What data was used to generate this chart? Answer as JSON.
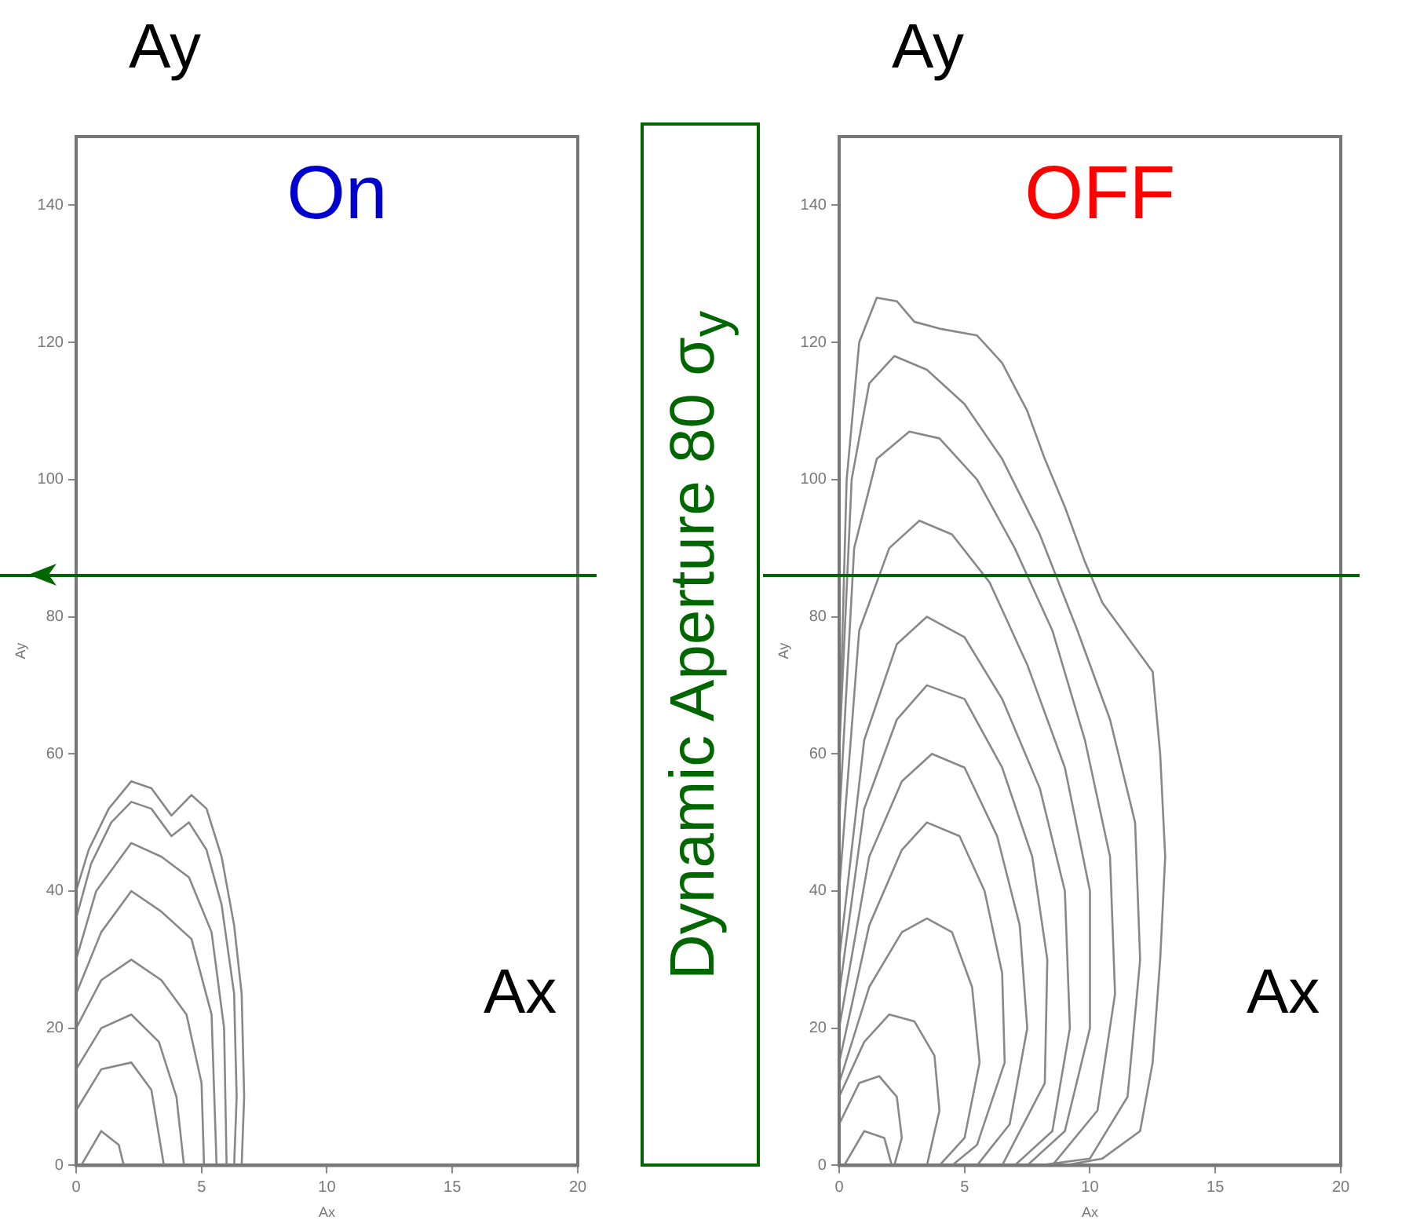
{
  "chart_data": [
    {
      "type": "line",
      "title": "On",
      "xlabel": "Ax",
      "ylabel": "Ay",
      "xlim": [
        0,
        20
      ],
      "xticks": [
        0,
        5,
        10,
        15,
        20
      ],
      "ylim": [
        0,
        150
      ],
      "yticks": [
        0,
        20,
        40,
        60,
        80,
        100,
        120,
        140
      ],
      "grid": false,
      "legend": false,
      "marker": "none",
      "line_style": "solid",
      "annotations": [
        "Ay",
        "Ax",
        "Dynamic Aperture 80 σ$_{y}$"
      ],
      "ref_lines": [
        {
          "axis": "y",
          "value": 86,
          "color": "#006600"
        }
      ],
      "series": [
        {
          "color": "#888888",
          "x": [
            0,
            0.5,
            1.3,
            2.2,
            3,
            3.8,
            4.6,
            5.2,
            5.8,
            6.3,
            6.6,
            6.7,
            6.6
          ],
          "values": [
            40,
            46,
            52,
            56,
            55,
            51,
            54,
            52,
            45,
            35,
            25,
            10,
            0
          ]
        },
        {
          "color": "#888888",
          "x": [
            0,
            0.6,
            1.4,
            2.2,
            3,
            3.8,
            4.5,
            5.2,
            5.8,
            6.3,
            6.4,
            6.3
          ],
          "values": [
            36,
            44,
            50,
            53,
            52,
            48,
            50,
            46,
            38,
            25,
            10,
            0
          ]
        },
        {
          "color": "#888888",
          "x": [
            0,
            0.8,
            2.2,
            3.4,
            4.5,
            5.4,
            5.9,
            6
          ],
          "values": [
            30,
            40,
            47,
            45,
            42,
            34,
            20,
            0
          ]
        },
        {
          "color": "#888888",
          "x": [
            0,
            1,
            2.2,
            3.4,
            4.6,
            5.4,
            5.6
          ],
          "values": [
            25,
            34,
            40,
            37,
            33,
            22,
            0
          ]
        },
        {
          "color": "#888888",
          "x": [
            0,
            1,
            2.2,
            3.4,
            4.4,
            5,
            5.1
          ],
          "values": [
            20,
            27,
            30,
            27,
            22,
            12,
            0
          ]
        },
        {
          "color": "#888888",
          "x": [
            0,
            1,
            2.2,
            3.3,
            4,
            4.3
          ],
          "values": [
            14,
            20,
            22,
            18,
            10,
            0
          ]
        },
        {
          "color": "#888888",
          "x": [
            0,
            1,
            2.2,
            3,
            3.5
          ],
          "values": [
            8,
            14,
            15,
            11,
            0
          ]
        },
        {
          "color": "#888888",
          "x": [
            0.2,
            1,
            1.7,
            1.9
          ],
          "values": [
            0,
            5,
            3,
            0
          ]
        }
      ]
    },
    {
      "type": "line",
      "title": "OFF",
      "xlabel": "Ax",
      "ylabel": "Ay",
      "xlim": [
        0,
        20
      ],
      "xticks": [
        0,
        5,
        10,
        15,
        20
      ],
      "ylim": [
        0,
        150
      ],
      "yticks": [
        0,
        20,
        40,
        60,
        80,
        100,
        120,
        140
      ],
      "grid": false,
      "legend": false,
      "marker": "none",
      "line_style": "solid",
      "annotations": [
        "Ay",
        "Ax"
      ],
      "ref_lines": [
        {
          "axis": "y",
          "value": 86,
          "color": "#006600"
        }
      ],
      "series": [
        {
          "color": "#888888",
          "x": [
            0,
            0.3,
            0.8,
            1.5,
            2.3,
            3,
            4,
            5.5,
            6.5,
            7.5,
            8.2,
            9,
            9.8,
            10.5,
            11.5,
            12.5,
            12.8,
            13,
            12.8,
            12.5,
            12,
            10.5,
            9
          ],
          "values": [
            60,
            100,
            120,
            126.5,
            126,
            123,
            122,
            121,
            117,
            110,
            103,
            96,
            88,
            82,
            77,
            72,
            60,
            45,
            30,
            15,
            5,
            1,
            0
          ]
        },
        {
          "color": "#888888",
          "x": [
            0,
            0.5,
            1.2,
            2.2,
            3.5,
            5,
            6.5,
            8,
            9.5,
            10.8,
            11.8,
            12,
            11.5,
            10,
            8
          ],
          "values": [
            60,
            100,
            114,
            118,
            116,
            111,
            103,
            92,
            78,
            65,
            50,
            30,
            10,
            1,
            0
          ]
        },
        {
          "color": "#888888",
          "x": [
            0,
            0.6,
            1.5,
            2.8,
            4,
            5.5,
            7,
            8.5,
            9.8,
            10.8,
            11,
            10.3,
            8.5
          ],
          "values": [
            50,
            90,
            103,
            107,
            106,
            100,
            90,
            78,
            62,
            45,
            25,
            8,
            0
          ]
        },
        {
          "color": "#888888",
          "x": [
            0,
            0.8,
            2,
            3.2,
            4.5,
            6,
            7.5,
            9,
            10,
            10,
            9,
            7.5
          ],
          "values": [
            40,
            78,
            90,
            94,
            92,
            85,
            73,
            58,
            40,
            20,
            5,
            0
          ]
        },
        {
          "color": "#888888",
          "x": [
            0,
            1,
            2.3,
            3.5,
            5,
            6.5,
            8,
            9,
            9.2,
            8.5,
            7
          ],
          "values": [
            30,
            62,
            76,
            80,
            77,
            68,
            55,
            40,
            20,
            5,
            0
          ]
        },
        {
          "color": "#888888",
          "x": [
            0,
            1,
            2.3,
            3.5,
            5,
            6.5,
            7.7,
            8.3,
            8.2,
            6.5
          ],
          "values": [
            25,
            52,
            65,
            70,
            68,
            58,
            45,
            30,
            12,
            0
          ]
        },
        {
          "color": "#888888",
          "x": [
            0,
            1.2,
            2.5,
            3.7,
            5,
            6.3,
            7.2,
            7.5,
            6.8,
            5.5
          ],
          "values": [
            20,
            45,
            56,
            60,
            58,
            48,
            35,
            20,
            6,
            0
          ]
        },
        {
          "color": "#888888",
          "x": [
            0,
            1.2,
            2.5,
            3.5,
            4.8,
            5.8,
            6.5,
            6.6,
            5.5,
            4.5
          ],
          "values": [
            15,
            35,
            46,
            50,
            48,
            40,
            28,
            15,
            3,
            0
          ]
        },
        {
          "color": "#888888",
          "x": [
            0,
            1.2,
            2.5,
            3.5,
            4.5,
            5.3,
            5.6,
            5,
            4
          ],
          "values": [
            12,
            26,
            34,
            36,
            34,
            26,
            15,
            4,
            0
          ]
        },
        {
          "color": "#888888",
          "x": [
            0,
            1,
            2,
            3,
            3.8,
            4,
            3.5
          ],
          "values": [
            10,
            18,
            22,
            21,
            16,
            8,
            0
          ]
        },
        {
          "color": "#888888",
          "x": [
            0,
            0.8,
            1.6,
            2.3,
            2.5,
            2.2
          ],
          "values": [
            6,
            12,
            13,
            10,
            4,
            0
          ]
        },
        {
          "color": "#888888",
          "x": [
            0.2,
            1,
            1.8,
            2.1
          ],
          "values": [
            0,
            5,
            4,
            0
          ]
        }
      ]
    }
  ]
}
